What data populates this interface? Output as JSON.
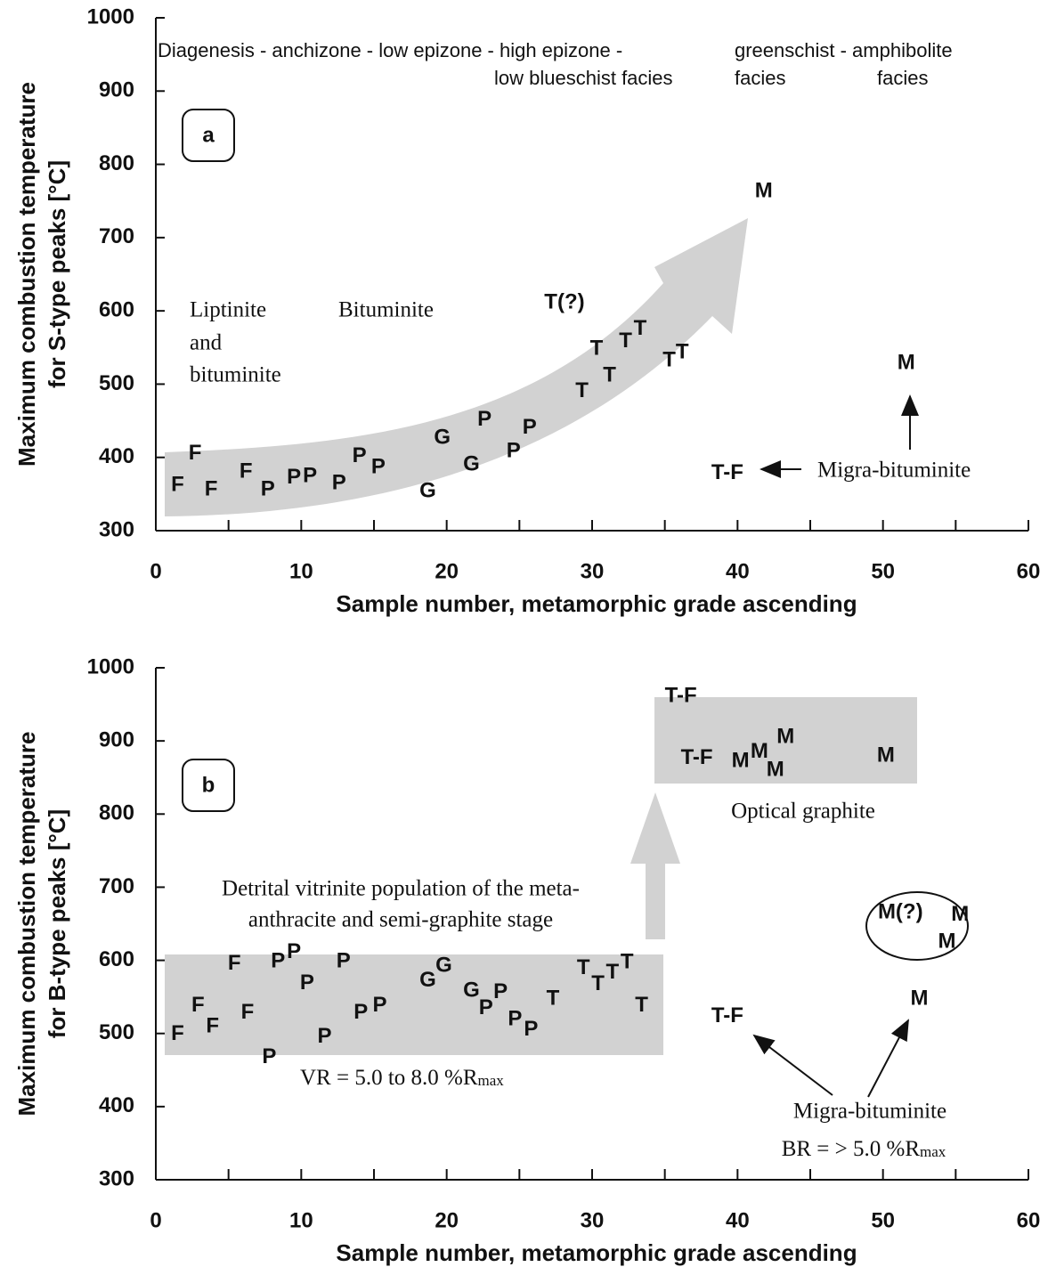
{
  "chart_data": [
    {
      "type": "scatter",
      "ylabel": [
        "Maximum combustion temperature",
        "for S-type peaks [°C]"
      ],
      "xlabel": "Sample number, metamorphic grade ascending",
      "xlim": [
        0,
        60
      ],
      "ylim": [
        300,
        1000
      ],
      "xticks": [
        0,
        10,
        20,
        30,
        40,
        50,
        60
      ],
      "xminorticks": [
        5,
        15,
        25,
        35,
        45,
        55
      ],
      "yticks": [
        300,
        400,
        500,
        600,
        700,
        800,
        900,
        1000
      ],
      "series": [
        {
          "name": "F",
          "x": [
            1.5,
            2.7,
            3.8,
            6.2
          ],
          "values": [
            362,
            405,
            356,
            380
          ]
        },
        {
          "name": "P",
          "x": [
            7.7,
            9.5,
            10.6,
            12.6,
            14,
            15.3,
            22.6,
            24.6,
            25.7
          ],
          "values": [
            356,
            372,
            374,
            364,
            401,
            386,
            451,
            408,
            440
          ]
        },
        {
          "name": "G",
          "x": [
            18.7,
            19.7,
            21.7
          ],
          "values": [
            353,
            426,
            390
          ]
        },
        {
          "name": "T",
          "x": [
            29.3,
            30.3,
            31.2,
            32.3,
            33.3,
            35.3,
            36.2
          ],
          "values": [
            490,
            548,
            511,
            558,
            575,
            532,
            543
          ]
        },
        {
          "name": "T(?)",
          "x": [
            28.1
          ],
          "values": [
            611
          ]
        },
        {
          "name": "M",
          "x": [
            41.8,
            51.6
          ],
          "values": [
            763,
            528
          ]
        },
        {
          "name": "T-F",
          "x": [
            39.3
          ],
          "values": [
            378
          ]
        }
      ],
      "annotations": [
        "a",
        "Diagenesis - anchizone - low epizone - high epizone -",
        "low blueschist facies",
        "greenschist - amphibolite",
        "facies",
        "facies",
        "Liptinite",
        "and",
        "bituminite",
        "Bituminite",
        "Migra-bituminite"
      ]
    },
    {
      "type": "scatter",
      "ylabel": [
        "Maximum combustion temperature",
        "for B-type peaks  [°C]"
      ],
      "xlabel": "Sample number, metamorphic grade ascending",
      "xlim": [
        0,
        60
      ],
      "ylim": [
        300,
        1000
      ],
      "xticks": [
        0,
        10,
        20,
        30,
        40,
        50,
        60
      ],
      "xminorticks": [
        5,
        15,
        25,
        35,
        45,
        55
      ],
      "yticks": [
        300,
        400,
        500,
        600,
        700,
        800,
        900,
        1000
      ],
      "series": [
        {
          "name": "F",
          "x": [
            1.5,
            2.9,
            3.9,
            5.4,
            6.3
          ],
          "values": [
            499,
            538,
            509,
            595,
            528
          ]
        },
        {
          "name": "P",
          "x": [
            7.8,
            8.4,
            9.5,
            10.4,
            11.6,
            12.9,
            14.1,
            15.4,
            22.7,
            23.7,
            24.7,
            25.8
          ],
          "values": [
            467,
            598,
            611,
            568,
            495,
            598,
            528,
            538,
            534,
            556,
            519,
            505
          ]
        },
        {
          "name": "G",
          "x": [
            18.7,
            19.8,
            21.7
          ],
          "values": [
            572,
            592,
            558
          ]
        },
        {
          "name": "T",
          "x": [
            27.3,
            29.4,
            30.4,
            31.4,
            32.4,
            33.4
          ],
          "values": [
            547,
            589,
            567,
            583,
            597,
            538
          ]
        },
        {
          "name": "T-F",
          "x": [
            36.1,
            37.2,
            39.3
          ],
          "values": [
            961,
            876,
            523
          ]
        },
        {
          "name": "M",
          "x": [
            40.2,
            41.5,
            42.6,
            43.3,
            50.2,
            52.5,
            54.4,
            55.3
          ],
          "values": [
            872,
            885,
            860,
            905,
            879,
            547,
            625,
            662
          ]
        },
        {
          "name": "M(?)",
          "x": [
            51.2
          ],
          "values": [
            665
          ]
        }
      ],
      "annotations": [
        "b",
        "Detrital vitrinite population of the meta-",
        "anthracite and semi-graphite stage",
        "Optical graphite",
        "VR = 5.0 to 8.0 %R",
        "max",
        "Migra-bituminite",
        "BR = > 5.0 %R",
        "max"
      ]
    }
  ]
}
